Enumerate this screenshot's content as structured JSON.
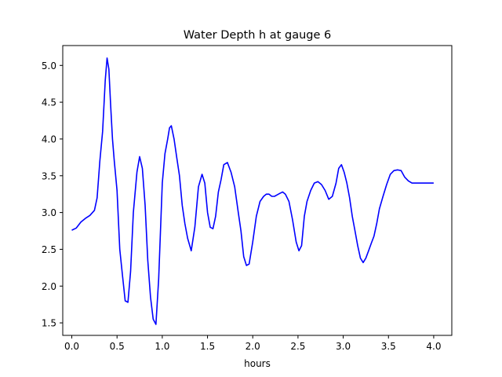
{
  "chart_data": {
    "type": "line",
    "title": "Water Depth h at gauge 6",
    "xlabel": "hours",
    "ylabel": "",
    "xlim": [
      -0.1,
      4.2
    ],
    "ylim": [
      1.33,
      5.27
    ],
    "xticks": [
      0.0,
      0.5,
      1.0,
      1.5,
      2.0,
      2.5,
      3.0,
      3.5,
      4.0
    ],
    "xtick_labels": [
      "0.0",
      "0.5",
      "1.0",
      "1.5",
      "2.0",
      "2.5",
      "3.0",
      "3.5",
      "4.0"
    ],
    "yticks": [
      1.5,
      2.0,
      2.5,
      3.0,
      3.5,
      4.0,
      4.5,
      5.0
    ],
    "ytick_labels": [
      "1.5",
      "2.0",
      "2.5",
      "3.0",
      "3.5",
      "4.0",
      "4.5",
      "5.0"
    ],
    "grid": false,
    "series": [
      {
        "color": "#0000ff",
        "x": [
          0.0,
          0.05,
          0.1,
          0.15,
          0.2,
          0.25,
          0.28,
          0.31,
          0.34,
          0.37,
          0.39,
          0.41,
          0.43,
          0.45,
          0.47,
          0.5,
          0.53,
          0.56,
          0.59,
          0.62,
          0.65,
          0.68,
          0.72,
          0.75,
          0.78,
          0.81,
          0.84,
          0.87,
          0.9,
          0.93,
          0.96,
          1.0,
          1.03,
          1.06,
          1.08,
          1.1,
          1.13,
          1.16,
          1.19,
          1.22,
          1.25,
          1.28,
          1.32,
          1.36,
          1.4,
          1.44,
          1.47,
          1.5,
          1.53,
          1.56,
          1.59,
          1.62,
          1.65,
          1.68,
          1.72,
          1.76,
          1.8,
          1.84,
          1.87,
          1.9,
          1.93,
          1.96,
          2.0,
          2.04,
          2.08,
          2.12,
          2.15,
          2.18,
          2.21,
          2.24,
          2.27,
          2.3,
          2.33,
          2.36,
          2.4,
          2.44,
          2.48,
          2.51,
          2.54,
          2.57,
          2.6,
          2.64,
          2.68,
          2.72,
          2.76,
          2.8,
          2.84,
          2.88,
          2.92,
          2.95,
          2.98,
          3.01,
          3.04,
          3.07,
          3.1,
          3.13,
          3.16,
          3.19,
          3.22,
          3.25,
          3.28,
          3.31,
          3.34,
          3.37,
          3.4,
          3.44,
          3.48,
          3.52,
          3.56,
          3.6,
          3.64,
          3.68,
          3.72,
          3.76,
          3.8,
          3.85,
          3.9,
          3.94,
          3.97,
          4.0
        ],
        "y": [
          2.76,
          2.79,
          2.87,
          2.92,
          2.96,
          3.03,
          3.2,
          3.7,
          4.1,
          4.8,
          5.1,
          4.95,
          4.45,
          4.0,
          3.7,
          3.3,
          2.5,
          2.15,
          1.8,
          1.78,
          2.2,
          3.0,
          3.55,
          3.76,
          3.6,
          3.1,
          2.35,
          1.85,
          1.55,
          1.48,
          2.1,
          3.4,
          3.8,
          4.0,
          4.15,
          4.18,
          4.0,
          3.75,
          3.5,
          3.1,
          2.85,
          2.65,
          2.48,
          2.8,
          3.35,
          3.52,
          3.4,
          3.0,
          2.8,
          2.78,
          2.95,
          3.28,
          3.45,
          3.65,
          3.68,
          3.55,
          3.35,
          3.0,
          2.75,
          2.4,
          2.28,
          2.3,
          2.6,
          2.95,
          3.15,
          3.22,
          3.25,
          3.25,
          3.22,
          3.22,
          3.24,
          3.26,
          3.28,
          3.25,
          3.15,
          2.9,
          2.6,
          2.48,
          2.55,
          2.95,
          3.15,
          3.3,
          3.4,
          3.42,
          3.38,
          3.3,
          3.18,
          3.22,
          3.4,
          3.6,
          3.65,
          3.55,
          3.4,
          3.2,
          2.95,
          2.75,
          2.55,
          2.38,
          2.32,
          2.38,
          2.48,
          2.58,
          2.68,
          2.85,
          3.05,
          3.22,
          3.38,
          3.52,
          3.57,
          3.58,
          3.57,
          3.48,
          3.43,
          3.4,
          3.4,
          3.4,
          3.4,
          3.4,
          3.4,
          3.4
        ]
      }
    ]
  }
}
